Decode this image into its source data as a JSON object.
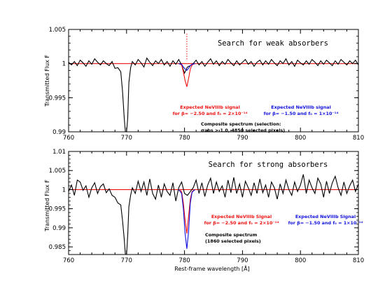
{
  "colors": {
    "spectrum": "#000000",
    "red_signal": "#ee1111",
    "blue_signal": "#1111dd",
    "unity_line": "#ee1111"
  },
  "chart_data": [
    {
      "type": "line",
      "title": "Search for weak absorbers",
      "xlabel": "",
      "ylabel": "Transmitted Flux F",
      "xlim": [
        760,
        810
      ],
      "ylim": [
        0.99,
        1.005
      ],
      "xticks": [
        "760",
        "770",
        "780",
        "790",
        "800",
        "810"
      ],
      "yticks": [
        "0.99",
        "0.995",
        "1",
        "1.005"
      ],
      "marker_line_x": 780.4,
      "annotations": {
        "red_line1": "Expected NeVIIIb signal",
        "red_line2": "for β= −2.50 and f₀ = 2×10⁻¹⁴",
        "blue_line1": "Expected NeVIIIb signal",
        "blue_line2": "for β= −1.50 and f₀ = 1×10⁻¹⁴",
        "comp_line1": "Composite spectrum (selection:",
        "comp_line2": "σabs > 1.0, 4850 selected pixels)"
      },
      "series": [
        {
          "name": "Composite spectrum",
          "x": [
            760,
            760.5,
            761,
            761.5,
            762,
            762.5,
            763,
            763.5,
            764,
            764.5,
            765,
            765.5,
            766,
            766.5,
            767,
            767.5,
            768,
            768.5,
            769,
            769.3,
            769.6,
            769.8,
            770,
            770.2,
            770.4,
            770.7,
            771,
            771.5,
            772,
            772.5,
            773,
            773.5,
            774,
            774.5,
            775,
            775.5,
            776,
            776.5,
            777,
            777.5,
            778,
            778.5,
            779,
            779.5,
            780,
            780.5,
            781,
            781.5,
            782,
            782.5,
            783,
            783.5,
            784,
            784.5,
            785,
            785.5,
            786,
            786.5,
            787,
            787.5,
            788,
            788.5,
            789,
            789.5,
            790,
            790.5,
            791,
            791.5,
            792,
            792.5,
            793,
            793.5,
            794,
            794.5,
            795,
            795.5,
            796,
            796.5,
            797,
            797.5,
            798,
            798.5,
            799,
            799.5,
            800,
            800.5,
            801,
            801.5,
            802,
            802.5,
            803,
            803.5,
            804,
            804.5,
            805,
            805.5,
            806,
            806.5,
            807,
            807.5,
            808,
            808.5,
            809,
            809.5,
            810
          ],
          "values": [
            1.0002,
            0.9998,
            1.0003,
            0.9997,
            1.0005,
            1.0001,
            0.9996,
            1.0004,
            0.9999,
            1.0007,
            1.0002,
            0.9998,
            1.0004,
            1.0,
            0.9997,
            1.0003,
            0.9993,
            0.9994,
            0.9988,
            0.996,
            0.992,
            0.99,
            0.99,
            0.992,
            0.9972,
            0.9994,
            1.0003,
            0.9998,
            1.0006,
            1.0001,
            0.9995,
            1.0008,
            1.0002,
            0.9997,
            1.0004,
            1.0,
            1.0006,
            0.9998,
            1.0003,
            0.9996,
            1.0004,
            0.9999,
            1.0006,
            0.9998,
            0.9986,
            0.9995,
            0.9997,
            1.0,
            1.0005,
            0.9998,
            1.0003,
            0.9996,
            1.0002,
            1.0007,
            0.9999,
            1.0004,
            0.9997,
            1.0003,
            0.9999,
            1.0006,
            1.0001,
            0.9997,
            1.0004,
            0.9998,
            1.0002,
            1.0006,
            0.9999,
            1.0003,
            0.9996,
            1.0002,
            1.0005,
            0.9998,
            1.0004,
            0.9999,
            1.0006,
            1.0001,
            0.9997,
            1.0004,
            1.0,
            1.0007,
            0.9998,
            1.0003,
            0.9996,
            1.0005,
            1.0001,
            0.9998,
            1.0004,
            0.9999,
            1.0006,
            1.0002,
            0.9997,
            1.0004,
            0.9999,
            1.0005,
            1.0001,
            0.9997,
            1.0004,
            0.9999,
            1.0006,
            1.0002,
            0.9998,
            1.0004,
            1.0,
            1.0005,
            0.9998
          ]
        },
        {
          "name": "Expected NeVIIIb signal (β=−2.50)",
          "x": [
            779,
            779.5,
            779.8,
            780.1,
            780.4,
            780.7,
            781,
            781.3,
            781.8
          ],
          "values": [
            1.0,
            0.9998,
            0.9988,
            0.9975,
            0.9966,
            0.9978,
            0.9992,
            0.9998,
            1.0
          ]
        },
        {
          "name": "Expected NeVIIIb signal (β=−1.50)",
          "x": [
            779,
            779.5,
            779.8,
            780.1,
            780.4,
            780.7,
            781,
            781.3,
            781.8
          ],
          "values": [
            1.0,
            0.9999,
            0.9995,
            0.9992,
            0.999,
            0.9993,
            0.9997,
            0.9999,
            1.0
          ]
        }
      ]
    },
    {
      "type": "line",
      "title": "Search for strong absorbers",
      "xlabel": "Rest-frame wavelength [Å]",
      "ylabel": "Transmitted Flux F",
      "xlim": [
        760,
        810
      ],
      "ylim": [
        0.983,
        1.01
      ],
      "xticks": [
        "760",
        "770",
        "780",
        "790",
        "800",
        "810"
      ],
      "yticks": [
        "0.985",
        "0.99",
        "0.995",
        "1",
        "1.005",
        "1.01"
      ],
      "annotations": {
        "red_line1": "Expected NeVIIIb Signal",
        "red_line2": "for β= −2.50 and f₀ = 2×10⁻¹⁴",
        "blue_line1": "Expected NeVIIIb Signal",
        "blue_line2": "for β= −1.50 and f₀ = 1×10⁻¹⁴",
        "comp_line1": "Composite spectrum",
        "comp_line2": "(1860 selected pixels)"
      },
      "series": [
        {
          "name": "Composite spectrum",
          "x": [
            760,
            760.5,
            761,
            761.5,
            762,
            762.5,
            763,
            763.5,
            764,
            764.5,
            765,
            765.5,
            766,
            766.5,
            767,
            767.5,
            768,
            768.5,
            769,
            769.3,
            769.6,
            769.8,
            770,
            770.2,
            770.4,
            770.7,
            771,
            771.5,
            772,
            772.5,
            773,
            773.5,
            774,
            774.5,
            775,
            775.5,
            776,
            776.5,
            777,
            777.5,
            778,
            778.5,
            779,
            779.5,
            780,
            780.5,
            781,
            781.5,
            782,
            782.5,
            783,
            783.5,
            784,
            784.5,
            785,
            785.5,
            786,
            786.5,
            787,
            787.5,
            788,
            788.5,
            789,
            789.5,
            790,
            790.5,
            791,
            791.5,
            792,
            792.5,
            793,
            793.5,
            794,
            794.5,
            795,
            795.5,
            796,
            796.5,
            797,
            797.5,
            798,
            798.5,
            799,
            799.5,
            800,
            800.5,
            801,
            801.5,
            802,
            802.5,
            803,
            803.5,
            804,
            804.5,
            805,
            805.5,
            806,
            806.5,
            807,
            807.5,
            808,
            808.5,
            809,
            809.5,
            810
          ],
          "values": [
            0.9995,
            1.0012,
            0.9985,
            1.0025,
            1.002,
            0.9998,
            1.001,
            0.998,
            1.0005,
            1.0018,
            0.999,
            1.0008,
            1.0015,
            0.9992,
            1.0002,
            0.9985,
            0.998,
            0.9965,
            0.996,
            0.992,
            0.987,
            0.983,
            0.983,
            0.988,
            0.9955,
            0.9985,
            1.0005,
            0.999,
            1.0022,
            0.9995,
            1.002,
            0.9985,
            1.0028,
            0.999,
            0.9975,
            1.0012,
            0.998,
            1.0015,
            0.9995,
            0.9985,
            1.0018,
            0.997,
            1.0005,
            1.002,
            0.999,
            0.9985,
            0.9995,
            1.0005,
            1.0025,
            0.999,
            1.0018,
            0.9982,
            1.0012,
            1.003,
            0.999,
            1.002,
            0.9995,
            1.001,
            0.998,
            1.0025,
            0.9992,
            1.0032,
            0.999,
            1.0015,
            0.998,
            1.0022,
            1.0005,
            0.9985,
            1.0018,
            0.999,
            1.0028,
            0.9992,
            1.0012,
            0.998,
            1.002,
            1.0005,
            0.9975,
            1.0015,
            0.999,
            1.0025,
            1.0,
            0.9985,
            1.002,
            0.9995,
            1.0012,
            1.004,
            0.999,
            1.0025,
            1.0005,
            0.999,
            1.003,
            1.0015,
            0.998,
            1.0022,
            0.999,
            1.0018,
            1.0035,
            1.0005,
            0.9985,
            1.002,
            0.999,
            1.001,
            1.0025,
            0.9995,
            1.0015
          ]
        },
        {
          "name": "Expected NeVIIIb Signal (β=−2.50)",
          "x": [
            779,
            779.5,
            779.8,
            780.1,
            780.4,
            780.7,
            781,
            781.3,
            781.8
          ],
          "values": [
            1.0,
            0.9995,
            0.9965,
            0.992,
            0.9885,
            0.993,
            0.9975,
            0.9995,
            1.0
          ]
        },
        {
          "name": "Expected NeVIIIb Signal (β=−1.50)",
          "x": [
            779,
            779.5,
            779.8,
            780.1,
            780.4,
            780.7,
            781,
            781.3,
            781.8
          ],
          "values": [
            1.0,
            0.999,
            0.995,
            0.9885,
            0.9845,
            0.989,
            0.9965,
            0.9993,
            1.0
          ]
        }
      ]
    }
  ]
}
